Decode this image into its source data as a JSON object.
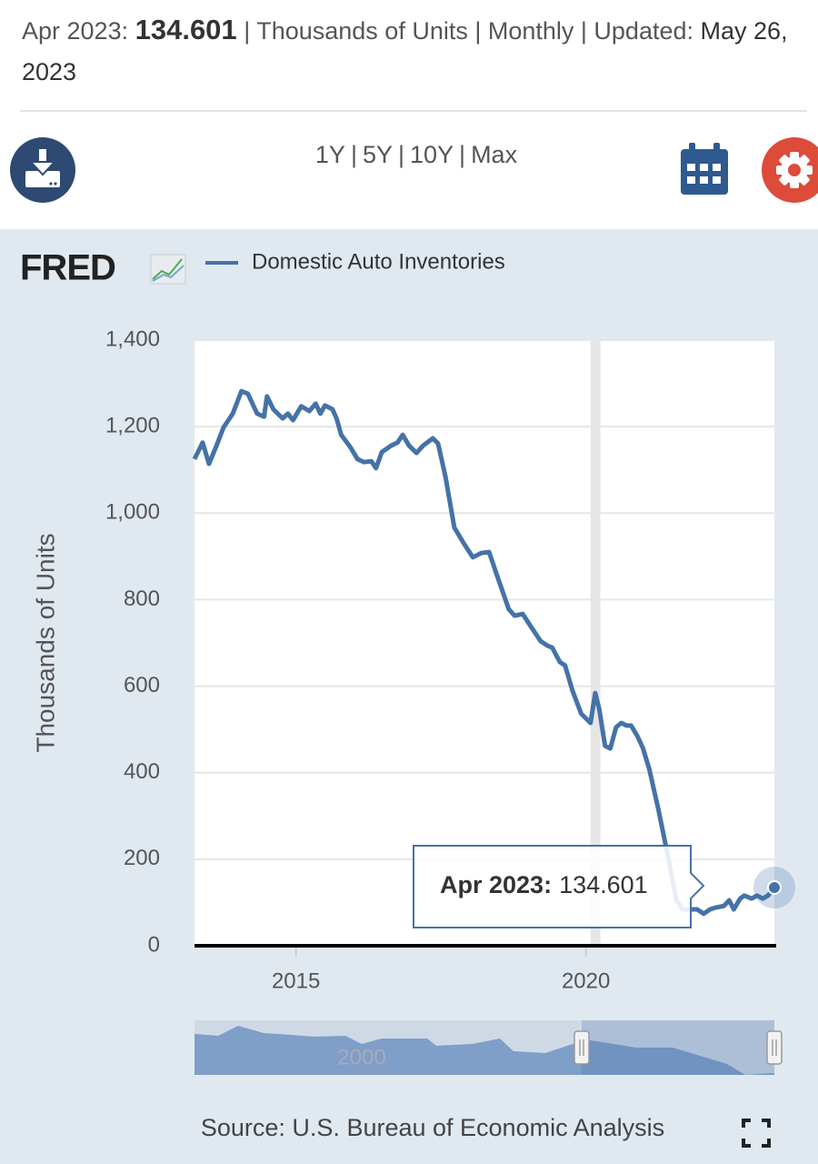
{
  "header": {
    "date": "Apr 2023:",
    "value": 134.601,
    "meta": "| Thousands of Units | Monthly | Updated:",
    "updated": "May 26, 2023"
  },
  "ranges": [
    "1Y",
    "5Y",
    "10Y",
    "Max"
  ],
  "range_separator": "|",
  "logo": "FRED",
  "source": "Source: U.S. Bureau of Economic Analysis",
  "navigator": {
    "label": "2000"
  },
  "chart_data": {
    "type": "line",
    "x": [
      2013.25,
      2013.39,
      2013.5,
      2013.63,
      2013.75,
      2013.91,
      2014.06,
      2014.17,
      2014.33,
      2014.45,
      2014.5,
      2014.61,
      2014.77,
      2014.86,
      2014.95,
      2015.09,
      2015.23,
      2015.34,
      2015.42,
      2015.5,
      2015.63,
      2015.7,
      2015.78,
      2015.94,
      2016.06,
      2016.17,
      2016.3,
      2016.38,
      2016.48,
      2016.64,
      2016.75,
      2016.84,
      2016.95,
      2017.08,
      2017.19,
      2017.36,
      2017.45,
      2017.58,
      2017.73,
      2017.89,
      2018.05,
      2018.2,
      2018.33,
      2018.48,
      2018.67,
      2018.77,
      2018.91,
      2019.06,
      2019.22,
      2019.33,
      2019.42,
      2019.55,
      2019.64,
      2019.77,
      2019.92,
      2020.08,
      2020.16,
      2020.23,
      2020.33,
      2020.42,
      2020.52,
      2020.61,
      2020.7,
      2020.78,
      2020.89,
      2020.98,
      2021.09,
      2021.25,
      2021.41,
      2021.56,
      2021.67,
      2021.8,
      2021.92,
      2022.03,
      2022.14,
      2022.23,
      2022.38,
      2022.47,
      2022.55,
      2022.66,
      2022.73,
      2022.86,
      2022.95,
      2023.05,
      2023.14,
      2023.25
    ],
    "series": [
      {
        "name": "Domestic Auto Inventories",
        "color": "#4572a7",
        "values": [
          1125,
          1163,
          1114,
          1156,
          1198,
          1230,
          1282,
          1276,
          1230,
          1223,
          1270,
          1240,
          1219,
          1230,
          1215,
          1247,
          1236,
          1253,
          1230,
          1249,
          1240,
          1219,
          1181,
          1152,
          1125,
          1118,
          1120,
          1104,
          1141,
          1156,
          1163,
          1181,
          1156,
          1139,
          1156,
          1173,
          1161,
          1083,
          967,
          931,
          898,
          908,
          910,
          851,
          778,
          763,
          767,
          736,
          704,
          694,
          689,
          656,
          648,
          589,
          536,
          515,
          584,
          547,
          462,
          456,
          505,
          515,
          509,
          509,
          484,
          458,
          410,
          315,
          210,
          105,
          84,
          84,
          84,
          74,
          84,
          88,
          92,
          105,
          84,
          109,
          116,
          109,
          116,
          109,
          116,
          134.601
        ]
      }
    ],
    "y_label": "Thousands of Units",
    "xlim": [
      2013.25,
      2023.25
    ],
    "xticks": [
      2015,
      2020
    ],
    "ylim": [
      0,
      1400
    ],
    "yticks": [
      0,
      200,
      400,
      600,
      800,
      {
        "value": 1000,
        "label": "1,000"
      },
      {
        "value": 1200,
        "label": "1,200"
      },
      {
        "value": 1400,
        "label": "1,400"
      }
    ],
    "grid": true,
    "shaded_periods": [
      [
        2020.08,
        2020.25
      ]
    ],
    "tooltip": {
      "label": "Apr 2023:",
      "value": 134.601
    }
  }
}
